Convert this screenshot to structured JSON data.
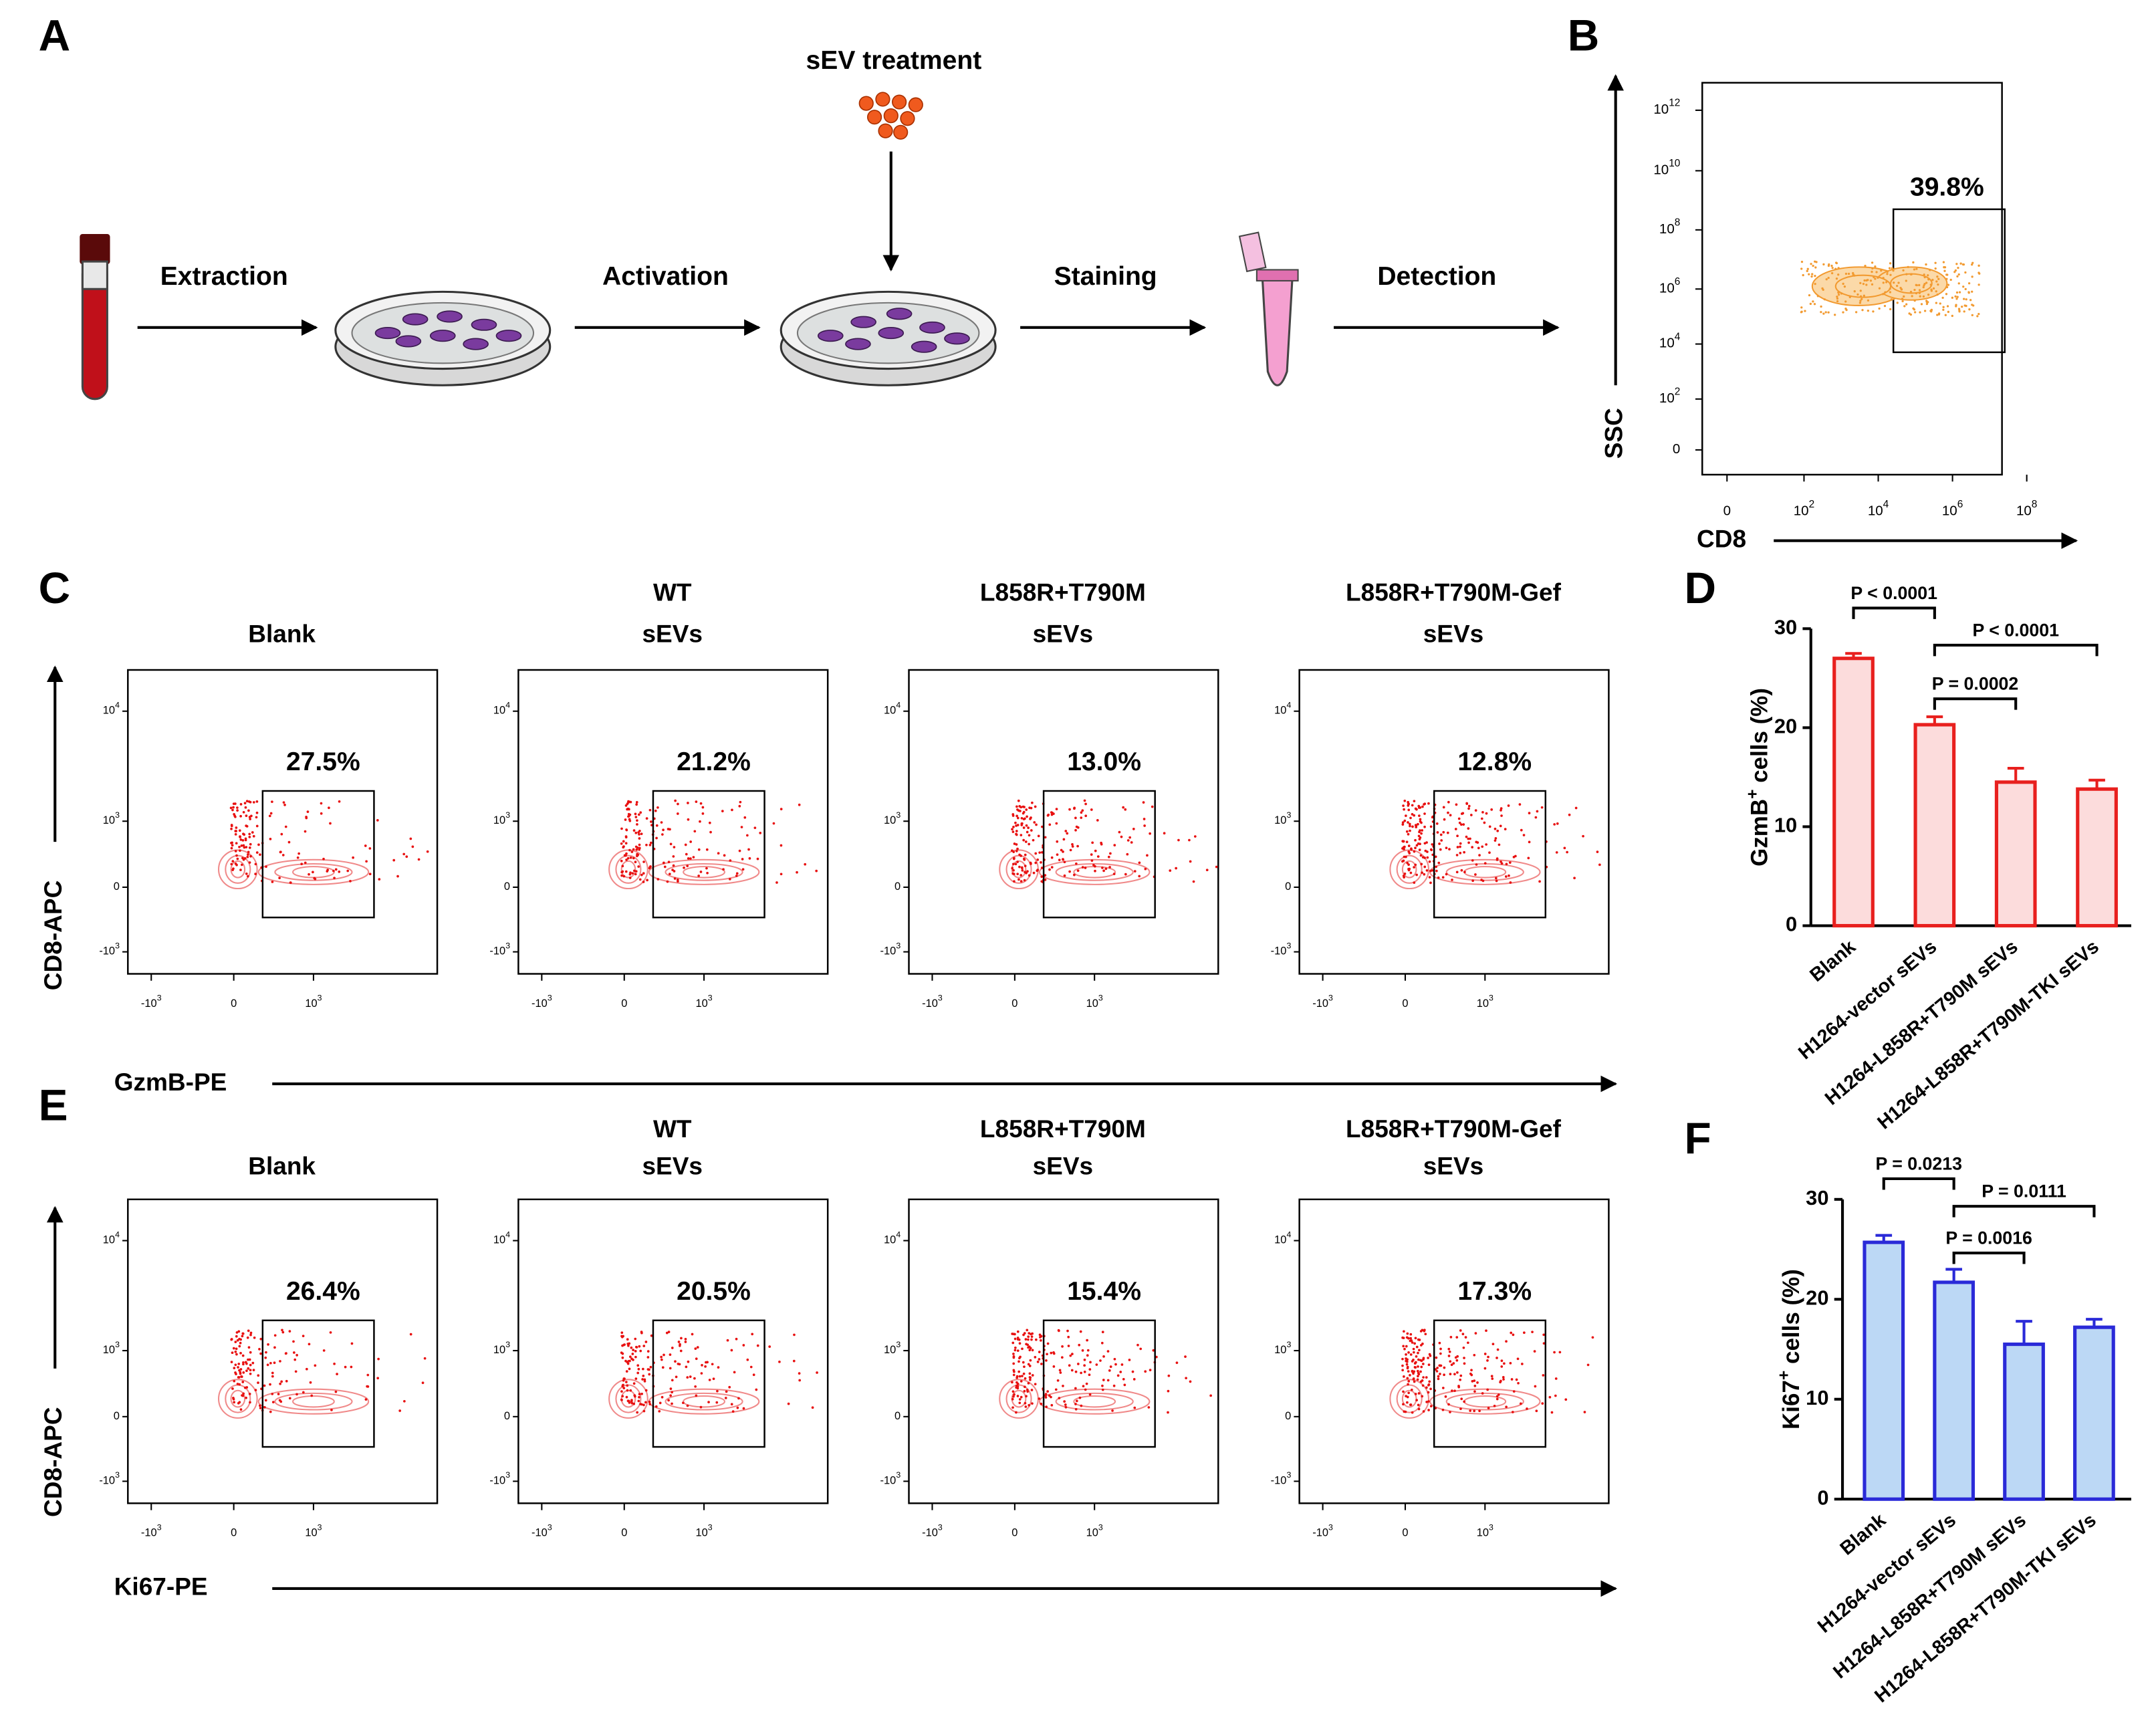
{
  "panel_labels": [
    "A",
    "B",
    "C",
    "D",
    "E",
    "F"
  ],
  "panel_a": {
    "treatment": "sEV treatment",
    "steps": [
      "Extraction",
      "Activation",
      "Staining",
      "Detection"
    ]
  },
  "panel_b": {
    "gate_percent": "39.8%",
    "x_label": "CD8",
    "y_label": "SSC",
    "y_ticks": [
      {
        "base": "10",
        "sup": "12"
      },
      {
        "base": "10",
        "sup": "10"
      },
      {
        "base": "10",
        "sup": "8"
      },
      {
        "base": "10",
        "sup": "6"
      },
      {
        "base": "10",
        "sup": "4"
      },
      {
        "base": "10",
        "sup": "2"
      },
      {
        "base": "0"
      }
    ],
    "x_ticks": [
      {
        "base": "0"
      },
      {
        "base": "10",
        "sup": "2"
      },
      {
        "base": "10",
        "sup": "4"
      },
      {
        "base": "10",
        "sup": "6"
      },
      {
        "base": "10",
        "sup": "8"
      }
    ]
  },
  "panel_c": {
    "x_label": "GzmB-PE",
    "y_label": "CD8-APC",
    "groups": [
      {
        "title": [
          "Blank"
        ],
        "gate_percent": "27.5%"
      },
      {
        "title": [
          "WT",
          "sEVs"
        ],
        "gate_percent": "21.2%"
      },
      {
        "title": [
          "L858R+T790M",
          "sEVs"
        ],
        "gate_percent": "13.0%"
      },
      {
        "title": [
          "L858R+T790M-Gef",
          "sEVs"
        ],
        "gate_percent": "12.8%"
      }
    ],
    "y_ticks": [
      {
        "base": "10",
        "sup": "4"
      },
      {
        "base": "10",
        "sup": "3"
      },
      {
        "base": "0"
      },
      {
        "base": "-10",
        "sup": "3"
      }
    ],
    "x_ticks": [
      {
        "base": "-10",
        "sup": "3"
      },
      {
        "base": "0"
      },
      {
        "base": "10",
        "sup": "3"
      }
    ]
  },
  "panel_e": {
    "x_label": "Ki67-PE",
    "y_label": "CD8-APC",
    "groups": [
      {
        "title": [
          "Blank"
        ],
        "gate_percent": "26.4%"
      },
      {
        "title": [
          "WT",
          "sEVs"
        ],
        "gate_percent": "20.5%"
      },
      {
        "title": [
          "L858R+T790M",
          "sEVs"
        ],
        "gate_percent": "15.4%"
      },
      {
        "title": [
          "L858R+T790M-Gef",
          "sEVs"
        ],
        "gate_percent": "17.3%"
      }
    ],
    "y_ticks": [
      {
        "base": "10",
        "sup": "4"
      },
      {
        "base": "10",
        "sup": "3"
      },
      {
        "base": "0"
      },
      {
        "base": "-10",
        "sup": "3"
      }
    ],
    "x_ticks": [
      {
        "base": "-10",
        "sup": "3"
      },
      {
        "base": "0"
      },
      {
        "base": "10",
        "sup": "3"
      }
    ]
  },
  "chart_data": [
    {
      "type": "bar",
      "ylabel": {
        "text": "GzmB",
        "sup": "+",
        "rest": " cells (%)"
      },
      "categories": [
        "Blank",
        "H1264-vector sEVs",
        "H1264-L858R+T790M sEVs",
        "H1264-L858R+T790M-TKI sEVs"
      ],
      "values": [
        27,
        20.3,
        14.5,
        13.8
      ],
      "errors": [
        0.5,
        0.8,
        1.4,
        0.9
      ],
      "fill": "#fcdcdc",
      "color": "#e8201e",
      "ylim": [
        0,
        30
      ],
      "yticks": [
        0,
        10,
        20,
        30
      ],
      "annotations": [
        {
          "text": "P < 0.0001",
          "from": 0,
          "to": 1
        },
        {
          "text": "P < 0.0001",
          "from": 1,
          "to": 3
        },
        {
          "text": "P = 0.0002",
          "from": 1,
          "to": 2
        }
      ]
    },
    {
      "type": "bar",
      "ylabel": {
        "text": "Ki67",
        "sup": "+",
        "rest": " cells (%)"
      },
      "categories": [
        "Blank",
        "H1264-vector sEVs",
        "H1264-L858R+T790M sEVs",
        "H1264-L858R+T790M-TKI sEVs"
      ],
      "values": [
        25.7,
        21.7,
        15.5,
        17.2
      ],
      "errors": [
        0.7,
        1.3,
        2.3,
        0.8
      ],
      "fill": "#bcd8f5",
      "color": "#2a2ad8",
      "ylim": [
        0,
        30
      ],
      "yticks": [
        0,
        10,
        20,
        30
      ],
      "annotations": [
        {
          "text": "P = 0.0213",
          "from": 0,
          "to": 1
        },
        {
          "text": "P = 0.0111",
          "from": 1,
          "to": 3
        },
        {
          "text": "P = 0.0016",
          "from": 1,
          "to": 2
        }
      ]
    }
  ]
}
